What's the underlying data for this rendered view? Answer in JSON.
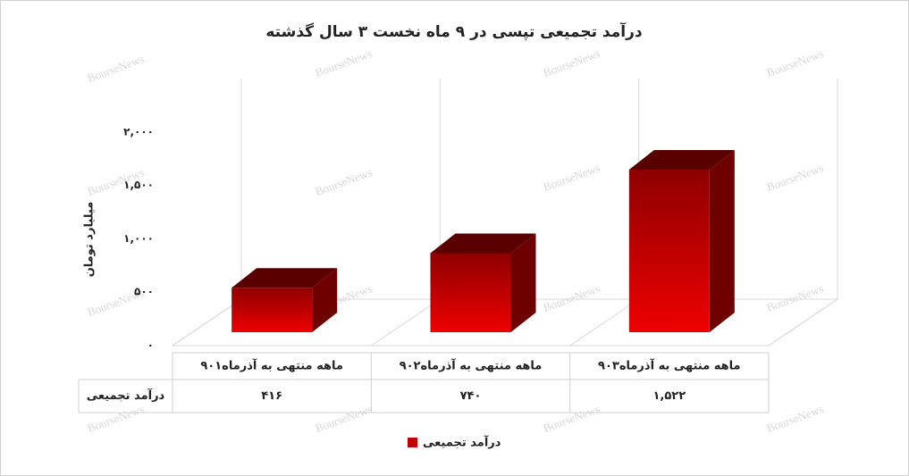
{
  "chart_data": {
    "type": "bar3d",
    "title": "درآمد تجمیعی تپسی در ۹ ماه نخست ۳ سال گذشته",
    "y_label": "میلیارد تومان",
    "watermark": "BourseNews",
    "categories": [
      "۹ماهه منتهی به آذرماه۰۱",
      "۹ماهه منتهی به آذرماه۰۲",
      "۹ماهه منتهی به آذرماه۰۳"
    ],
    "series": [
      {
        "name": "درآمد تجمیعی",
        "color": "#c00000",
        "values": [
          416,
          740,
          1522
        ],
        "value_labels": [
          "۴۱۶",
          "۷۴۰",
          "۱,۵۲۲"
        ]
      }
    ],
    "ylim": [
      0,
      2500
    ],
    "yticks": [
      {
        "value": 0,
        "label": "۰"
      },
      {
        "value": 500,
        "label": "۵۰۰"
      },
      {
        "value": 1000,
        "label": "۱,۰۰۰"
      },
      {
        "value": 1500,
        "label": "۱,۵۰۰"
      },
      {
        "value": 2000,
        "label": "۲,۰۰۰"
      }
    ],
    "grid": true
  }
}
